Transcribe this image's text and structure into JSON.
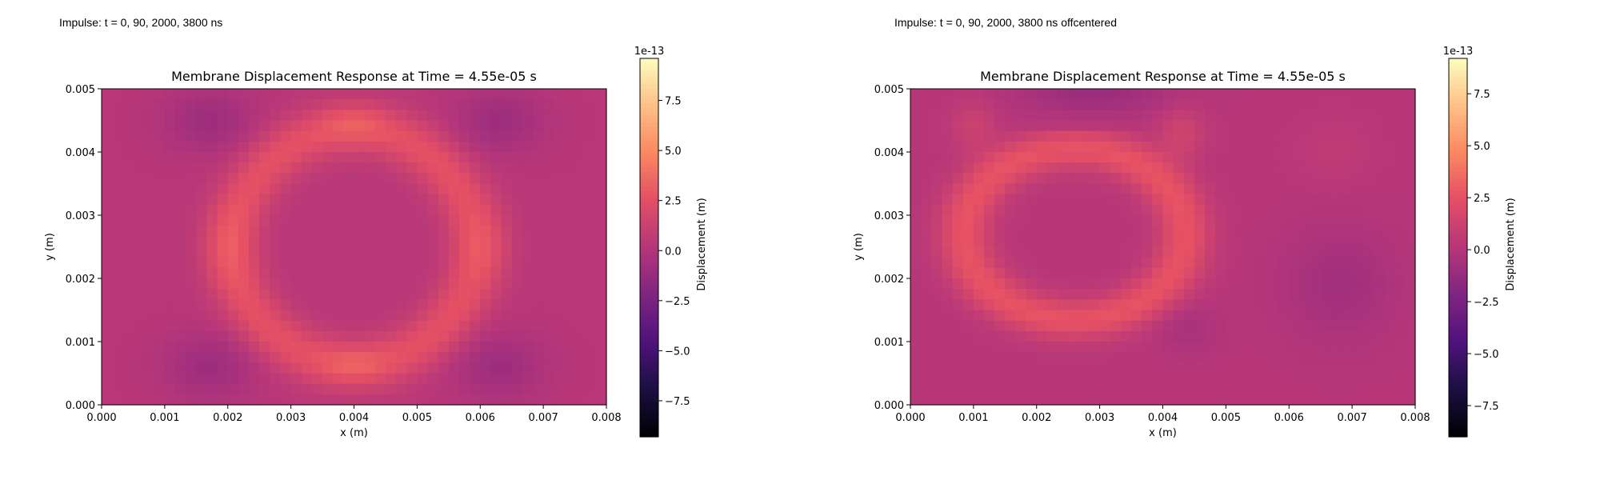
{
  "panels": [
    {
      "caption": "Impulse: t = 0, 90, 2000, 3800 ns"
    },
    {
      "caption": "Impulse: t = 0, 90, 2000, 3800 ns offcentered"
    }
  ],
  "chart_data": [
    {
      "type": "heatmap",
      "title": "Membrane Displacement Response at Time = 4.55e-05 s",
      "xlabel": "x (m)",
      "ylabel": "y (m)",
      "xlim": [
        0.0,
        0.008
      ],
      "ylim": [
        0.0,
        0.005
      ],
      "x_ticks": [
        "0.000",
        "0.001",
        "0.002",
        "0.003",
        "0.004",
        "0.005",
        "0.006",
        "0.007",
        "0.008"
      ],
      "y_ticks": [
        "0.000",
        "0.001",
        "0.002",
        "0.003",
        "0.004",
        "0.005"
      ],
      "grid": false,
      "colormap": "magma",
      "colorbar": {
        "label": "Displacement (m)",
        "offset_text": "1e-13",
        "range": [
          -9.3,
          9.6
        ],
        "ticks": [
          "−7.5",
          "−5.0",
          "−2.5",
          "0.0",
          "2.5",
          "5.0",
          "7.5"
        ]
      },
      "displacement_range_1e-13_m": [
        -1.0,
        3.5
      ],
      "pattern": "ring centered near (0.0040, 0.0025) with bright lobes at top, bottom, left and right"
    },
    {
      "type": "heatmap",
      "title": "Membrane Displacement Response at Time = 4.55e-05 s",
      "xlabel": "x (m)",
      "ylabel": "y (m)",
      "xlim": [
        0.0,
        0.008
      ],
      "ylim": [
        0.0,
        0.005
      ],
      "x_ticks": [
        "0.000",
        "0.001",
        "0.002",
        "0.003",
        "0.004",
        "0.005",
        "0.006",
        "0.007",
        "0.008"
      ],
      "y_ticks": [
        "0.000",
        "0.001",
        "0.002",
        "0.003",
        "0.004",
        "0.005"
      ],
      "grid": false,
      "colormap": "magma",
      "colorbar": {
        "label": "Displacement (m)",
        "offset_text": "1e-13",
        "range": [
          -9.0,
          9.2
        ],
        "ticks": [
          "−7.5",
          "−5.0",
          "−2.5",
          "0.0",
          "2.5",
          "5.0",
          "7.5"
        ]
      },
      "displacement_range_1e-13_m": [
        -1.0,
        3.5
      ],
      "pattern": "off-centered ring near (0.0026, 0.0027) with bright spots at upper-left and upper-right"
    }
  ]
}
